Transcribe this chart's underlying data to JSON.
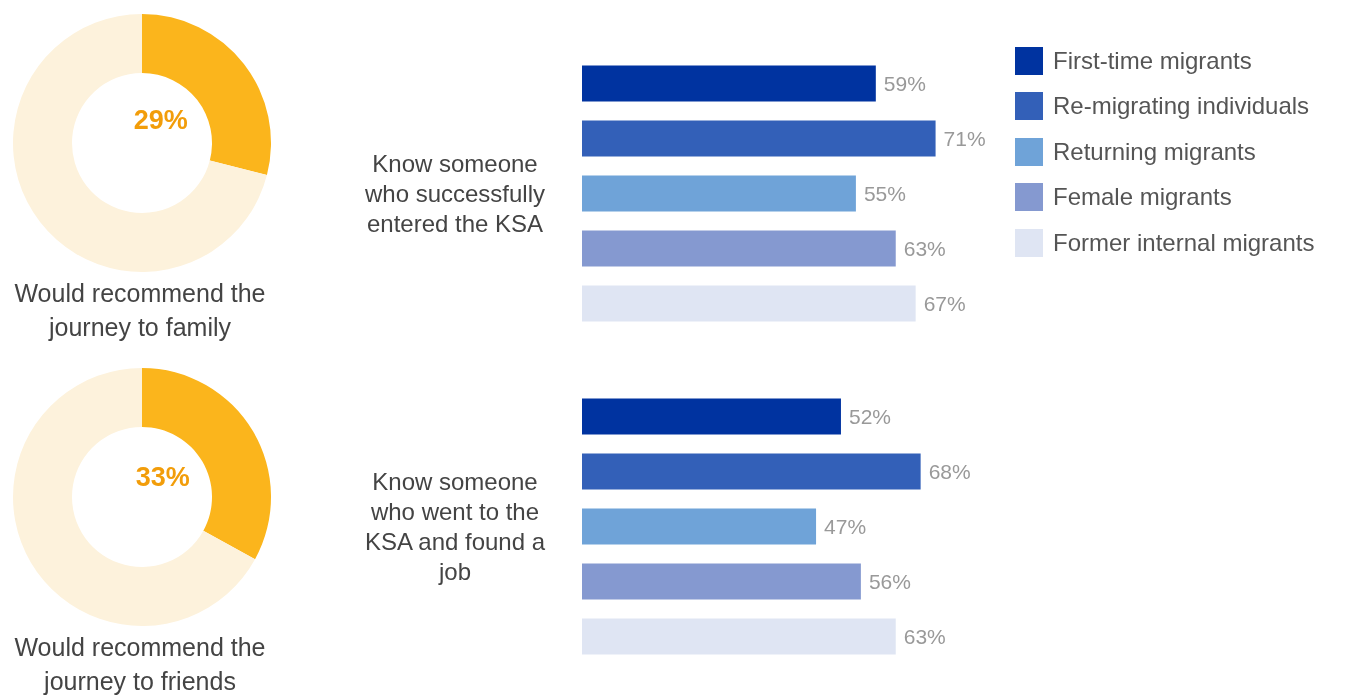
{
  "chart_data": [
    {
      "type": "donut",
      "title": "Would recommend the journey to family",
      "categories": [
        null,
        null
      ],
      "values": [
        29,
        71
      ],
      "value_labels": [
        "29%",
        null
      ],
      "colors": [
        "#fbb51c",
        "#fdf2dc"
      ]
    },
    {
      "type": "donut",
      "title": "Would recommend the journey to friends",
      "categories": [
        null,
        null
      ],
      "values": [
        33,
        67
      ],
      "value_labels": [
        "33%",
        null
      ],
      "colors": [
        "#fbb51c",
        "#fdf2dc"
      ]
    },
    {
      "type": "bar",
      "orientation": "horizontal",
      "stacked": true,
      "ylabel": "Know someone who successfully entered the KSA",
      "categories": [
        null,
        null,
        null,
        null,
        null
      ],
      "legend": "top right",
      "series": [
        {
          "name": "First-time migrants",
          "color": "#0033a0",
          "values": [
            59,
            null,
            null,
            null,
            null
          ],
          "value_labels": [
            "59%",
            null,
            null,
            null,
            null
          ]
        },
        {
          "name": "Re-migrating individuals",
          "color": "#3360b8",
          "values": [
            null,
            71,
            null,
            null,
            null
          ],
          "value_labels": [
            null,
            "71%",
            null,
            null,
            null
          ]
        },
        {
          "name": "Returning migrants",
          "color": "#6fa3d8",
          "values": [
            null,
            null,
            55,
            null,
            null
          ],
          "value_labels": [
            null,
            null,
            "55%",
            null,
            null
          ]
        },
        {
          "name": "Female migrants",
          "color": "#8599d0",
          "values": [
            null,
            null,
            null,
            63,
            null
          ],
          "value_labels": [
            null,
            null,
            null,
            "63%",
            null
          ]
        },
        {
          "name": "Former internal migrants",
          "color": "#dfe5f3",
          "values": [
            null,
            null,
            null,
            null,
            67
          ],
          "value_labels": [
            null,
            null,
            null,
            null,
            "67%"
          ]
        }
      ]
    },
    {
      "type": "bar",
      "orientation": "horizontal",
      "stacked": true,
      "ylabel": "Know someone who went to the KSA and found a job",
      "categories": [
        null,
        null,
        null,
        null,
        null
      ],
      "series": [
        {
          "color": "#0033a0",
          "values": [
            52,
            null,
            null,
            null,
            null
          ],
          "value_labels": [
            "52%",
            null,
            null,
            null,
            null
          ]
        },
        {
          "color": "#3360b8",
          "values": [
            null,
            68,
            null,
            null,
            null
          ],
          "value_labels": [
            null,
            "68%",
            null,
            null,
            null
          ]
        },
        {
          "color": "#6fa3d8",
          "values": [
            null,
            null,
            47,
            null,
            null
          ],
          "value_labels": [
            null,
            null,
            "47%",
            null,
            null
          ]
        },
        {
          "color": "#8599d0",
          "values": [
            null,
            null,
            null,
            56,
            null
          ],
          "value_labels": [
            null,
            null,
            null,
            "56%",
            null
          ]
        },
        {
          "color": "#dfe5f3",
          "values": [
            null,
            null,
            null,
            null,
            63
          ],
          "value_labels": [
            null,
            null,
            null,
            null,
            "63%"
          ]
        }
      ]
    }
  ]
}
